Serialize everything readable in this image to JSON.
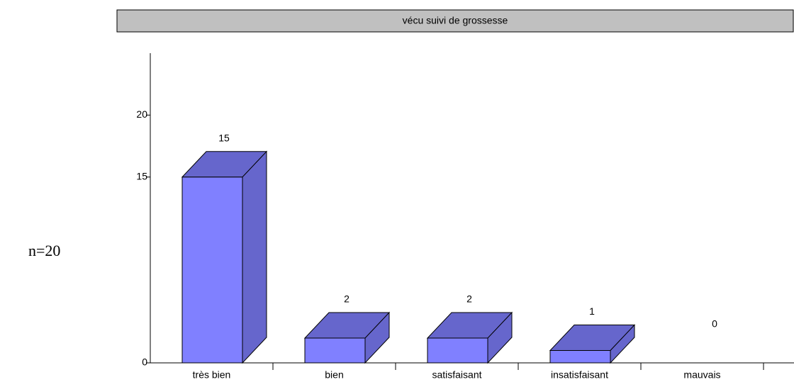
{
  "chart_data": {
    "type": "bar3d",
    "title": "vécu suivi de grossesse",
    "annotation": "n=20",
    "categories": [
      "très bien",
      "bien",
      "satisfaisant",
      "insatisfaisant",
      "mauvais"
    ],
    "values": [
      15,
      2,
      2,
      1,
      0
    ],
    "color": "#8080ff",
    "shade_color": "#6666cc",
    "ylim": [
      0,
      25
    ],
    "yticks": [
      0,
      15,
      20
    ]
  }
}
